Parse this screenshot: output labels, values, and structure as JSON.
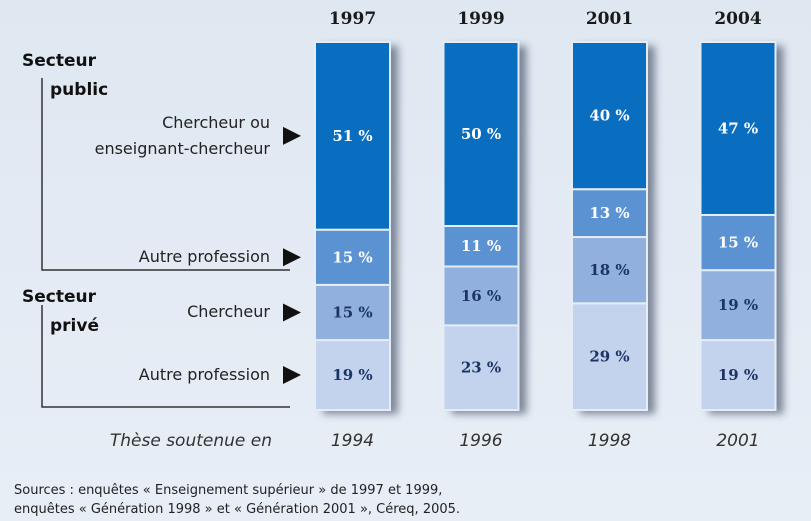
{
  "chart_data": {
    "type": "stacked_bar",
    "categories": [
      "1997",
      "1999",
      "2001",
      "2004"
    ],
    "secondary_label": "Thèse soutenue en",
    "secondary_categories": [
      "1994",
      "1996",
      "1998",
      "2001"
    ],
    "ylim": [
      0,
      100
    ],
    "series": [
      {
        "name": "Autre profession",
        "color": "#c3d3ee",
        "label_color": "#1c3566",
        "values": [
          19,
          23,
          29,
          19
        ],
        "value_labels": [
          "19 %",
          "23 %",
          "29 %",
          "19 %"
        ]
      },
      {
        "name": "Chercheur",
        "color": "#91b0de",
        "label_color": "#1c3566",
        "values": [
          15,
          16,
          18,
          19
        ],
        "value_labels": [
          "15 %",
          "16 %",
          "18 %",
          "19 %"
        ]
      },
      {
        "name": "Autre profession",
        "color": "#5b93d2",
        "label_color": "#ffffff",
        "values": [
          15,
          11,
          13,
          15
        ],
        "value_labels": [
          "15 %",
          "11 %",
          "13 %",
          "15 %"
        ]
      },
      {
        "name": "Chercheur ou enseignant-chercheur",
        "color": "#0a6ec0",
        "label_color": "#ffffff",
        "values": [
          51,
          50,
          40,
          47
        ],
        "value_labels": [
          "51 %",
          "50 %",
          "40 %",
          "47 %"
        ]
      }
    ],
    "groups": [
      {
        "lines": [
          "Secteur",
          "public"
        ]
      },
      {
        "lines": [
          "Secteur",
          "privé"
        ]
      }
    ],
    "source": [
      "Sources : enquêtes « Enseignement supérieur » de 1997 et 1999,",
      "enquêtes « Génération 1998 » et « Génération 2001 », Céreq, 2005."
    ]
  }
}
